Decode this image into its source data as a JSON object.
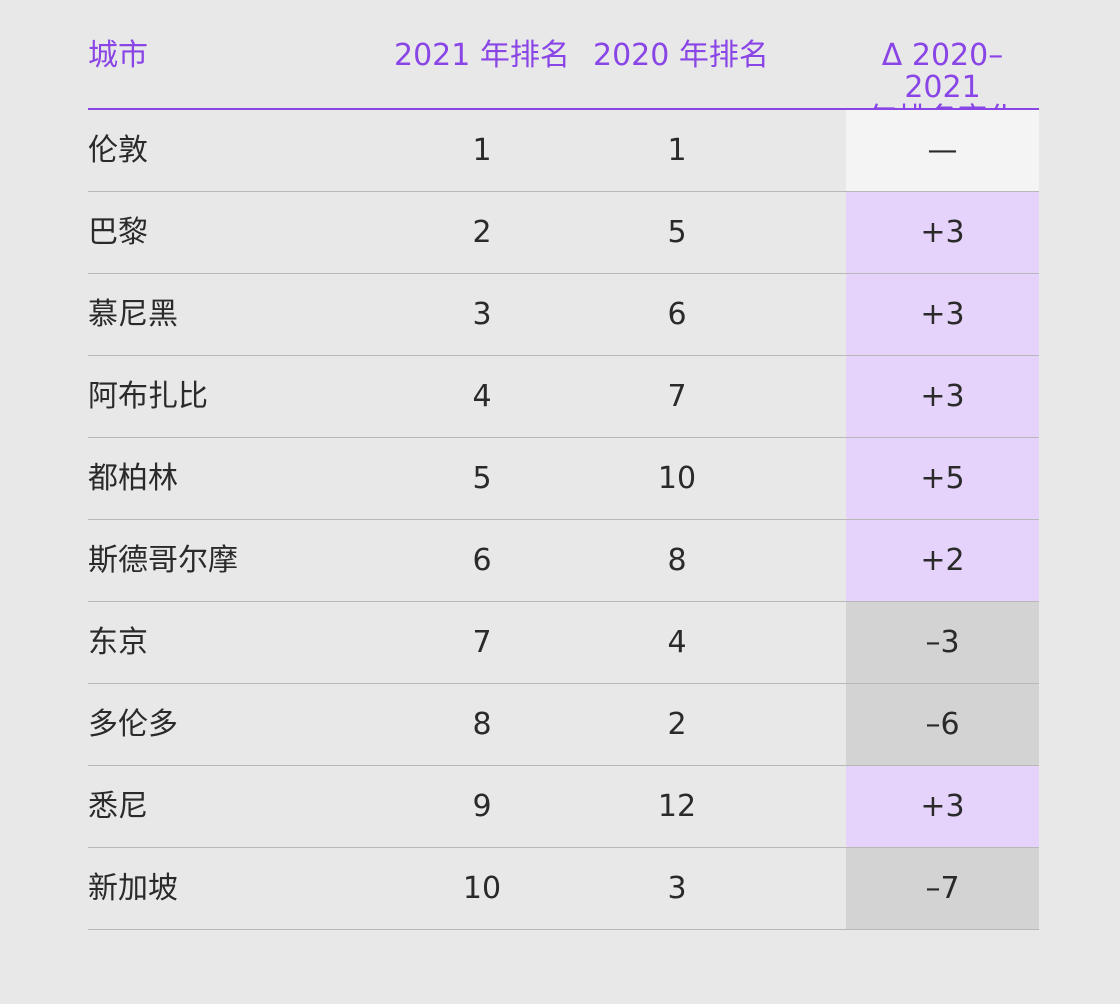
{
  "table": {
    "headers": {
      "city": "城市",
      "rank_2021": "2021 年排名",
      "rank_2020": "2020 年排名",
      "delta_line1": "Δ 2020–2021",
      "delta_line2": "年排名变化"
    },
    "colors": {
      "accent": "#8a45e6",
      "increase": "#e6d3fb",
      "decrease": "#d3d3d3",
      "no_change": "#f4f4f4"
    },
    "rows": [
      {
        "city": "伦敦",
        "rank_2021": "1",
        "rank_2020": "1",
        "delta": "—",
        "trend": "neutral"
      },
      {
        "city": "巴黎",
        "rank_2021": "2",
        "rank_2020": "5",
        "delta": "+3",
        "trend": "up"
      },
      {
        "city": "慕尼黑",
        "rank_2021": "3",
        "rank_2020": "6",
        "delta": "+3",
        "trend": "up"
      },
      {
        "city": "阿布扎比",
        "rank_2021": "4",
        "rank_2020": "7",
        "delta": "+3",
        "trend": "up"
      },
      {
        "city": "都柏林",
        "rank_2021": "5",
        "rank_2020": "10",
        "delta": "+5",
        "trend": "up"
      },
      {
        "city": "斯德哥尔摩",
        "rank_2021": "6",
        "rank_2020": "8",
        "delta": "+2",
        "trend": "up"
      },
      {
        "city": "东京",
        "rank_2021": "7",
        "rank_2020": "4",
        "delta": "–3",
        "trend": "down"
      },
      {
        "city": "多伦多",
        "rank_2021": "8",
        "rank_2020": "2",
        "delta": "–6",
        "trend": "down"
      },
      {
        "city": "悉尼",
        "rank_2021": "9",
        "rank_2020": "12",
        "delta": "+3",
        "trend": "up"
      },
      {
        "city": "新加坡",
        "rank_2021": "10",
        "rank_2020": "3",
        "delta": "–7",
        "trend": "down"
      }
    ]
  }
}
